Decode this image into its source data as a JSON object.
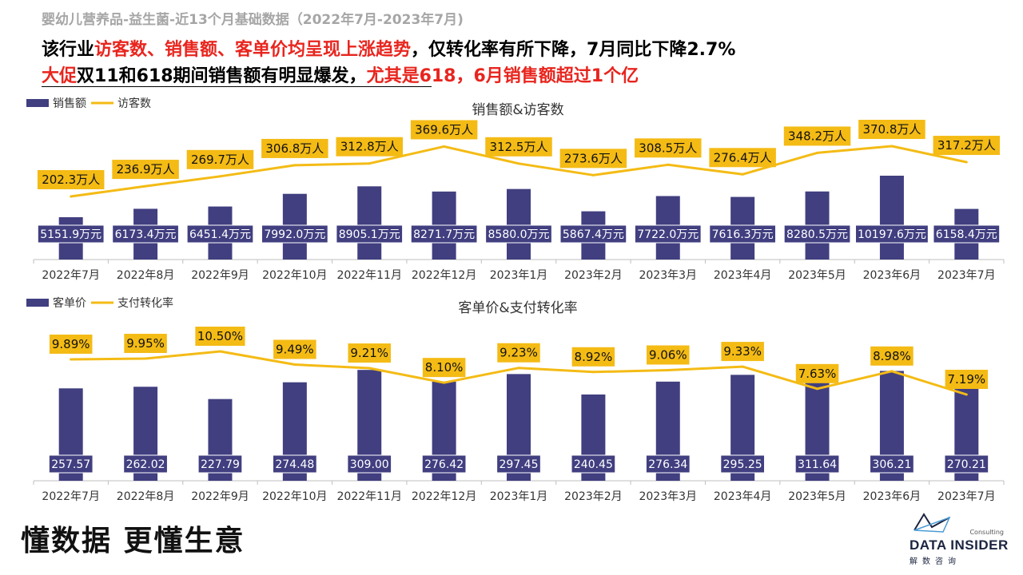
{
  "header": {
    "subtitle": "婴幼儿营养品-益生菌-近13个月基础数据（2022年7月-2023年7月)",
    "line1": [
      {
        "text": "该行业",
        "red": false
      },
      {
        "text": "访客数、销售额、客单价均呈现上涨趋势",
        "red": true
      },
      {
        "text": "，仅转化率有所下降，7月同比下降2.7%",
        "red": false
      }
    ],
    "line2": [
      {
        "text": "大促",
        "red": true
      },
      {
        "text": "双11和618期间销售额有明显爆发，",
        "red": false
      },
      {
        "text": "尤其是618，6月销售额超过1个亿",
        "red": true
      }
    ]
  },
  "colors": {
    "bar": "#413f80",
    "line": "#f4bb15",
    "label_bg": "#f4bb15",
    "red": "#e8251e",
    "axis": "#bfbfbf"
  },
  "chart_data": [
    {
      "type": "bar",
      "title": "销售额&访客数",
      "categories": [
        "2022年7月",
        "2022年8月",
        "2022年9月",
        "2022年10月",
        "2022年11月",
        "2022年12月",
        "2023年1月",
        "2023年2月",
        "2023年3月",
        "2023年4月",
        "2023年5月",
        "2023年6月",
        "2023年7月"
      ],
      "legend_position": "top-left",
      "grid": false,
      "series": [
        {
          "name": "销售额",
          "kind": "bar",
          "values": [
            5151.9,
            6173.4,
            6451.4,
            7992.0,
            8905.1,
            8271.7,
            8580.0,
            5867.4,
            7722.0,
            7616.3,
            8280.5,
            10197.6,
            6158.4
          ],
          "labels": [
            "5151.9万元",
            "6173.4万元",
            "6451.4万元",
            "7992.0万元",
            "8905.1万元",
            "8271.7万元",
            "8580.0万元",
            "5867.4万元",
            "7722.0万元",
            "7616.3万元",
            "8280.5万元",
            "10197.6万元",
            "6158.4万元"
          ]
        },
        {
          "name": "访客数",
          "kind": "line",
          "values": [
            202.3,
            236.9,
            269.7,
            306.8,
            312.8,
            369.6,
            312.5,
            273.6,
            308.5,
            276.4,
            348.2,
            370.8,
            317.2
          ],
          "labels": [
            "202.3万人",
            "236.9万人",
            "269.7万人",
            "306.8万人",
            "312.8万人",
            "369.6万人",
            "312.5万人",
            "273.6万人",
            "308.5万人",
            "276.4万人",
            "348.2万人",
            "370.8万人",
            "317.2万人"
          ]
        }
      ]
    },
    {
      "type": "bar",
      "title": "客单价&支付转化率",
      "categories": [
        "2022年7月",
        "2022年8月",
        "2022年9月",
        "2022年10月",
        "2022年11月",
        "2022年12月",
        "2023年1月",
        "2023年2月",
        "2023年3月",
        "2023年4月",
        "2023年5月",
        "2023年6月",
        "2023年7月"
      ],
      "legend_position": "top-left",
      "grid": false,
      "series": [
        {
          "name": "客单价",
          "kind": "bar",
          "values": [
            257.57,
            262.02,
            227.79,
            274.48,
            309.0,
            276.42,
            297.45,
            240.45,
            276.34,
            295.25,
            311.64,
            306.21,
            270.21
          ],
          "labels": [
            "257.57",
            "262.02",
            "227.79",
            "274.48",
            "309.00",
            "276.42",
            "297.45",
            "240.45",
            "276.34",
            "295.25",
            "311.64",
            "306.21",
            "270.21"
          ]
        },
        {
          "name": "支付转化率",
          "kind": "line",
          "values": [
            9.89,
            9.95,
            10.5,
            9.49,
            9.21,
            8.1,
            9.23,
            8.92,
            9.06,
            9.33,
            7.63,
            8.98,
            7.19
          ],
          "labels": [
            "9.89%",
            "9.95%",
            "10.50%",
            "9.49%",
            "9.21%",
            "8.10%",
            "9.23%",
            "8.92%",
            "9.06%",
            "9.33%",
            "7.63%",
            "8.98%",
            "7.19%"
          ]
        }
      ]
    }
  ],
  "footer": {
    "slogan": "懂数据 更懂生意",
    "logo_consult": "Consulting",
    "logo_name": "DATA INSIDER",
    "logo_cn": "解数咨询",
    "logo_icon": "data-insider-logo-icon"
  }
}
